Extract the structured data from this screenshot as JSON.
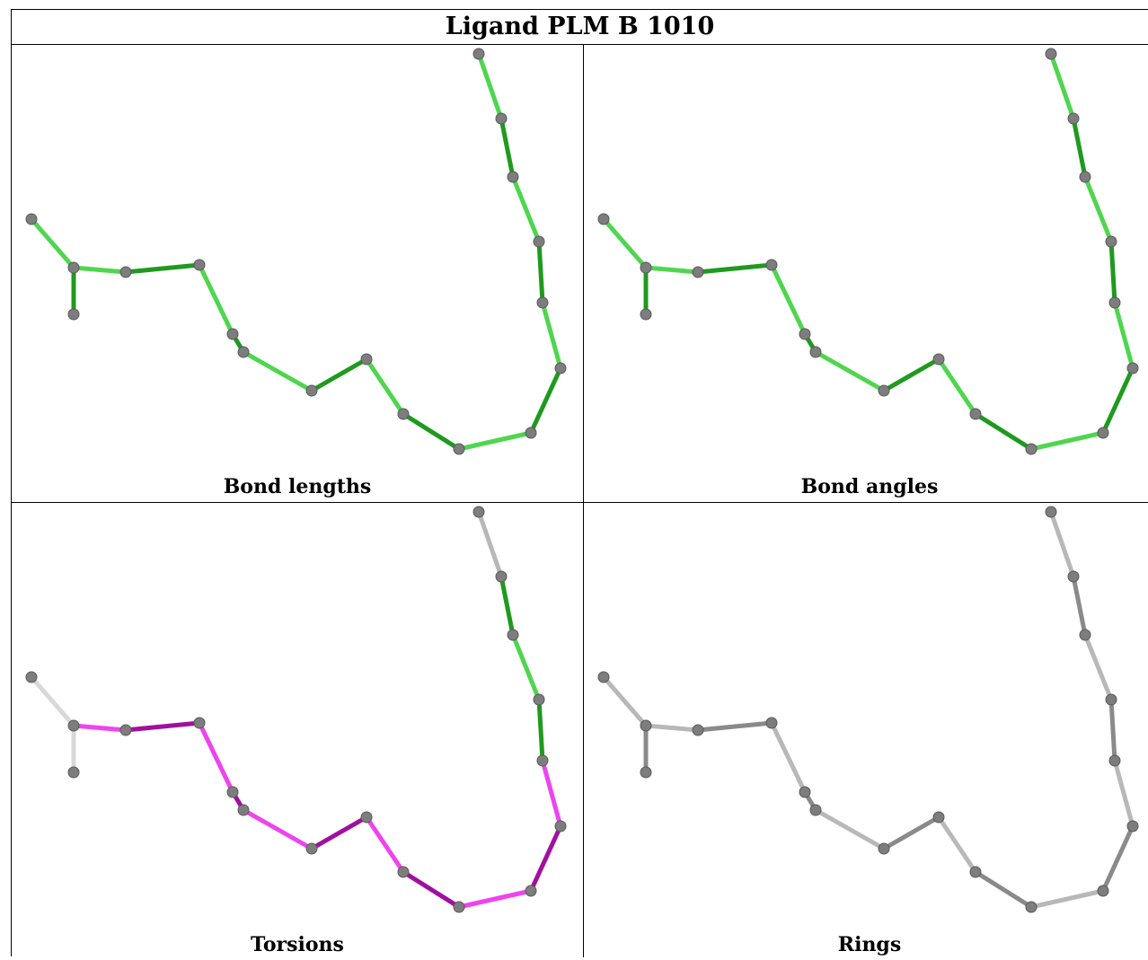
{
  "title": "Ligand PLM B 1010",
  "panels": [
    {
      "caption": "Bond lengths",
      "scheme": "green"
    },
    {
      "caption": "Bond angles",
      "scheme": "green"
    },
    {
      "caption": "Torsions",
      "scheme": "torsion"
    },
    {
      "caption": "Rings",
      "scheme": "grey"
    }
  ],
  "colors": {
    "green_light": "#4fd64f",
    "green_dark": "#1f9a1f",
    "magenta_light": "#ee44ee",
    "magenta_dark": "#a010a0",
    "bond_grey": "#b8b8b8",
    "bond_grey_dark": "#8a8a8a",
    "bond_white": "#d8d8d8",
    "atom": "#7d7d7d"
  }
}
